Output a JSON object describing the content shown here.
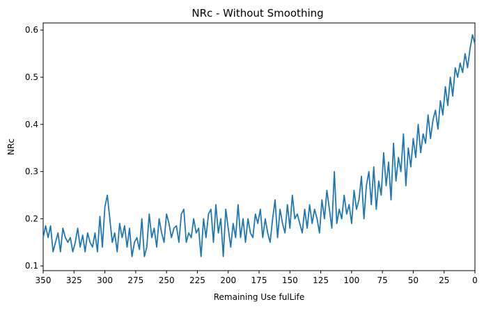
{
  "chart_data": {
    "type": "line",
    "title": "NRc - Without Smoothing",
    "xlabel": "Remaining Use fulLife",
    "ylabel": "NRc",
    "xlim": [
      350,
      0
    ],
    "ylim": [
      0.09,
      0.615
    ],
    "x_direction": "reversed",
    "grid": false,
    "line_color": "#1f77b4",
    "xticks": [
      350,
      325,
      300,
      275,
      250,
      225,
      200,
      175,
      150,
      125,
      100,
      75,
      50,
      25,
      0
    ],
    "yticks": [
      0.1,
      0.2,
      0.3,
      0.4,
      0.5,
      0.6
    ],
    "xtick_labels": [
      "350",
      "325",
      "300",
      "275",
      "250",
      "225",
      "200",
      "175",
      "150",
      "125",
      "100",
      "75",
      "50",
      "25",
      "0"
    ],
    "ytick_labels": [
      "0.1",
      "0.2",
      "0.3",
      "0.4",
      "0.5",
      "0.6"
    ],
    "series": [
      {
        "x": [
          350,
          348,
          346,
          344,
          342,
          340,
          338,
          336,
          334,
          332,
          330,
          328,
          326,
          324,
          322,
          320,
          318,
          316,
          314,
          312,
          310,
          308,
          306,
          304,
          302,
          300,
          298,
          296,
          294,
          292,
          290,
          288,
          286,
          284,
          282,
          280,
          278,
          276,
          274,
          272,
          270,
          268,
          266,
          264,
          262,
          260,
          258,
          256,
          254,
          252,
          250,
          248,
          246,
          244,
          242,
          240,
          238,
          236,
          234,
          232,
          230,
          228,
          226,
          224,
          222,
          220,
          218,
          216,
          214,
          212,
          210,
          208,
          206,
          204,
          202,
          200,
          198,
          196,
          194,
          192,
          190,
          188,
          186,
          184,
          182,
          180,
          178,
          176,
          174,
          172,
          170,
          168,
          166,
          164,
          162,
          160,
          158,
          156,
          154,
          152,
          150,
          148,
          146,
          144,
          142,
          140,
          138,
          136,
          134,
          132,
          130,
          128,
          126,
          124,
          122,
          120,
          118,
          116,
          114,
          112,
          110,
          108,
          106,
          104,
          102,
          100,
          98,
          96,
          94,
          92,
          90,
          88,
          86,
          84,
          82,
          80,
          78,
          76,
          74,
          72,
          70,
          68,
          66,
          64,
          62,
          60,
          58,
          56,
          54,
          52,
          50,
          48,
          46,
          44,
          42,
          40,
          38,
          36,
          34,
          32,
          30,
          28,
          26,
          24,
          22,
          20,
          18,
          16,
          14,
          12,
          10,
          8,
          6,
          4,
          2,
          0
        ],
        "values": [
          0.16,
          0.185,
          0.16,
          0.185,
          0.13,
          0.15,
          0.17,
          0.13,
          0.18,
          0.16,
          0.15,
          0.16,
          0.13,
          0.15,
          0.18,
          0.14,
          0.165,
          0.13,
          0.17,
          0.15,
          0.14,
          0.17,
          0.13,
          0.205,
          0.14,
          0.225,
          0.25,
          0.2,
          0.15,
          0.17,
          0.13,
          0.19,
          0.16,
          0.185,
          0.14,
          0.18,
          0.12,
          0.15,
          0.16,
          0.135,
          0.2,
          0.12,
          0.14,
          0.21,
          0.16,
          0.18,
          0.14,
          0.2,
          0.17,
          0.15,
          0.21,
          0.19,
          0.16,
          0.18,
          0.185,
          0.15,
          0.21,
          0.22,
          0.15,
          0.17,
          0.16,
          0.2,
          0.17,
          0.18,
          0.12,
          0.2,
          0.16,
          0.21,
          0.22,
          0.15,
          0.23,
          0.17,
          0.2,
          0.12,
          0.22,
          0.18,
          0.14,
          0.19,
          0.16,
          0.23,
          0.16,
          0.2,
          0.15,
          0.2,
          0.17,
          0.16,
          0.21,
          0.19,
          0.22,
          0.16,
          0.2,
          0.17,
          0.15,
          0.2,
          0.24,
          0.16,
          0.22,
          0.19,
          0.17,
          0.23,
          0.18,
          0.25,
          0.2,
          0.21,
          0.19,
          0.17,
          0.22,
          0.18,
          0.23,
          0.19,
          0.22,
          0.2,
          0.17,
          0.24,
          0.2,
          0.26,
          0.22,
          0.18,
          0.3,
          0.19,
          0.22,
          0.2,
          0.25,
          0.21,
          0.23,
          0.19,
          0.26,
          0.22,
          0.24,
          0.29,
          0.2,
          0.27,
          0.3,
          0.23,
          0.31,
          0.22,
          0.28,
          0.25,
          0.34,
          0.27,
          0.32,
          0.24,
          0.36,
          0.28,
          0.33,
          0.3,
          0.38,
          0.27,
          0.35,
          0.31,
          0.37,
          0.33,
          0.4,
          0.34,
          0.38,
          0.36,
          0.42,
          0.37,
          0.41,
          0.43,
          0.39,
          0.45,
          0.42,
          0.48,
          0.44,
          0.5,
          0.46,
          0.52,
          0.5,
          0.53,
          0.51,
          0.55,
          0.52,
          0.56,
          0.59,
          0.57
        ]
      }
    ]
  }
}
